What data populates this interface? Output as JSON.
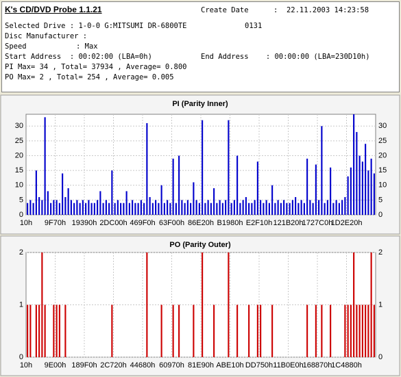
{
  "header": {
    "title": "K's CD/DVD Probe 1.1.21",
    "create_date_label": "Create Date",
    "create_date": ":  22.11.2003 14:23:58",
    "drive": "Selected Drive : 1-0-0 G:MITSUMI DR-6800TE",
    "firmware": "0131",
    "manufacturer": "Disc Manufacturer :",
    "speed_label": "Speed",
    "speed": ": Max",
    "start_address": "Start Address  : 00:02:00 (LBA=0h)",
    "end_address": "End Address    : 00:00:00 (LBA=230D10h)",
    "pi_summary": "PI Max= 34 , Total= 37934 , Average= 0.800",
    "po_summary": "PO Max= 2 , Total= 254 , Average= 0.005"
  },
  "chart_data": [
    {
      "type": "bar",
      "title": "PI (Parity Inner)",
      "color": "#0000cc",
      "grid": true,
      "ylim": [
        0,
        34
      ],
      "yticks": [
        0,
        5,
        10,
        15,
        20,
        25,
        30
      ],
      "categories": [
        "10h",
        null,
        null,
        null,
        null,
        null,
        null,
        null,
        null,
        null,
        "9F70h",
        null,
        null,
        null,
        null,
        null,
        null,
        null,
        null,
        null,
        "19390h",
        null,
        null,
        null,
        null,
        null,
        null,
        null,
        null,
        null,
        "2DC00h",
        null,
        null,
        null,
        null,
        null,
        null,
        null,
        null,
        null,
        "469F0h",
        null,
        null,
        null,
        null,
        null,
        null,
        null,
        null,
        null,
        "63F00h",
        null,
        null,
        null,
        null,
        null,
        null,
        null,
        null,
        null,
        "86E20h",
        null,
        null,
        null,
        null,
        null,
        null,
        null,
        null,
        null,
        "B1980h",
        null,
        null,
        null,
        null,
        null,
        null,
        null,
        null,
        null,
        "E2F10h",
        null,
        null,
        null,
        null,
        null,
        null,
        null,
        null,
        null,
        "121B20h",
        null,
        null,
        null,
        null,
        null,
        null,
        null,
        null,
        null,
        "1727C0h",
        null,
        null,
        null,
        null,
        null,
        null,
        null,
        null,
        null,
        "1D2E20h",
        null,
        null,
        null,
        null,
        null,
        null,
        null,
        null,
        null
      ],
      "values": [
        4,
        5,
        4,
        15,
        6,
        5,
        33,
        8,
        4,
        5,
        5,
        4,
        14,
        6,
        9,
        5,
        4,
        5,
        4,
        5,
        4,
        5,
        4,
        4,
        5,
        8,
        4,
        5,
        4,
        15,
        4,
        5,
        4,
        4,
        8,
        4,
        5,
        4,
        4,
        5,
        4,
        31,
        6,
        4,
        5,
        4,
        10,
        4,
        5,
        4,
        19,
        4,
        20,
        5,
        4,
        5,
        4,
        11,
        5,
        4,
        32,
        4,
        5,
        4,
        9,
        4,
        5,
        4,
        5,
        32,
        4,
        5,
        20,
        4,
        5,
        6,
        4,
        4,
        5,
        18,
        5,
        4,
        5,
        4,
        10,
        4,
        5,
        4,
        5,
        4,
        4,
        5,
        6,
        4,
        5,
        4,
        19,
        5,
        4,
        17,
        5,
        30,
        4,
        5,
        16,
        4,
        5,
        4,
        5,
        6,
        13,
        16,
        34,
        28,
        20,
        18,
        24,
        15,
        19,
        14
      ]
    },
    {
      "type": "bar",
      "title": "PO (Parity Outer)",
      "color": "#cc0000",
      "grid": true,
      "ylim": [
        0,
        2
      ],
      "yticks": [
        0,
        1,
        2
      ],
      "categories": [
        "10h",
        null,
        null,
        null,
        null,
        null,
        null,
        null,
        null,
        null,
        "9E00h",
        null,
        null,
        null,
        null,
        null,
        null,
        null,
        null,
        null,
        "189F0h",
        null,
        null,
        null,
        null,
        null,
        null,
        null,
        null,
        null,
        "2C720h",
        null,
        null,
        null,
        null,
        null,
        null,
        null,
        null,
        null,
        "44680h",
        null,
        null,
        null,
        null,
        null,
        null,
        null,
        null,
        null,
        "60970h",
        null,
        null,
        null,
        null,
        null,
        null,
        null,
        null,
        null,
        "81E90h",
        null,
        null,
        null,
        null,
        null,
        null,
        null,
        null,
        null,
        "ABE10h",
        null,
        null,
        null,
        null,
        null,
        null,
        null,
        null,
        null,
        "DD750h",
        null,
        null,
        null,
        null,
        null,
        null,
        null,
        null,
        null,
        "11B0E0h",
        null,
        null,
        null,
        null,
        null,
        null,
        null,
        null,
        null,
        "168870h",
        null,
        null,
        null,
        null,
        null,
        null,
        null,
        null,
        null,
        "1C4880h",
        null,
        null,
        null,
        null,
        null,
        null,
        null,
        null,
        null
      ],
      "values": [
        1,
        1,
        0,
        1,
        1,
        2,
        1,
        0,
        0,
        1,
        1,
        1,
        0,
        1,
        0,
        0,
        0,
        0,
        0,
        0,
        0,
        0,
        0,
        0,
        0,
        0,
        0,
        0,
        0,
        1,
        0,
        0,
        0,
        0,
        0,
        0,
        0,
        0,
        0,
        0,
        0,
        2,
        0,
        0,
        0,
        0,
        1,
        0,
        0,
        0,
        1,
        0,
        1,
        0,
        0,
        0,
        0,
        1,
        0,
        0,
        2,
        0,
        0,
        0,
        1,
        0,
        0,
        0,
        0,
        2,
        0,
        0,
        1,
        0,
        0,
        0,
        1,
        0,
        0,
        1,
        1,
        0,
        0,
        0,
        1,
        0,
        0,
        0,
        0,
        0,
        0,
        0,
        0,
        0,
        0,
        0,
        1,
        0,
        0,
        1,
        0,
        1,
        0,
        0,
        1,
        0,
        0,
        0,
        0,
        1,
        1,
        1,
        2,
        1,
        1,
        1,
        1,
        1,
        2,
        1
      ]
    }
  ]
}
